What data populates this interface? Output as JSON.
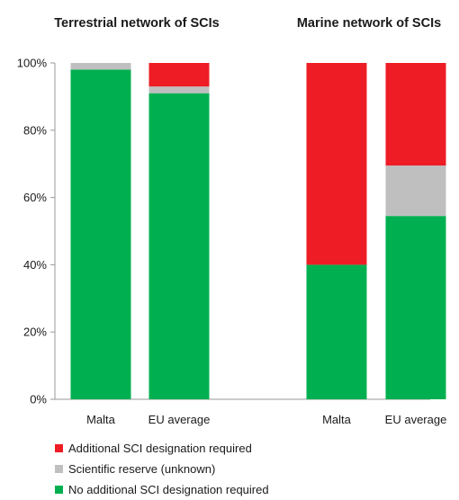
{
  "chart_data": {
    "type": "bar",
    "stacked": true,
    "normalized_percent": true,
    "yticks": [
      "0%",
      "20%",
      "40%",
      "60%",
      "80%",
      "100%"
    ],
    "ylim": [
      0,
      100
    ],
    "grid": false,
    "legend_position": "bottom-left",
    "series": [
      {
        "name": "No additional SCI designation required",
        "color": "#00b050"
      },
      {
        "name": "Scientific reserve (unknown)",
        "color": "#bfbfbf"
      },
      {
        "name": "Additional SCI designation required",
        "color": "#ee1c25"
      }
    ],
    "legend_order": [
      2,
      1,
      0
    ],
    "panels": [
      {
        "title": "Terrestrial network of SCIs",
        "categories": [
          "Malta",
          "EU average"
        ],
        "values": [
          [
            98,
            2,
            0
          ],
          [
            91,
            2,
            7
          ]
        ]
      },
      {
        "title": "Marine network of SCIs",
        "categories": [
          "Malta",
          "EU average"
        ],
        "values": [
          [
            40,
            0,
            60
          ],
          [
            54.5,
            15,
            30.5
          ]
        ]
      }
    ]
  }
}
